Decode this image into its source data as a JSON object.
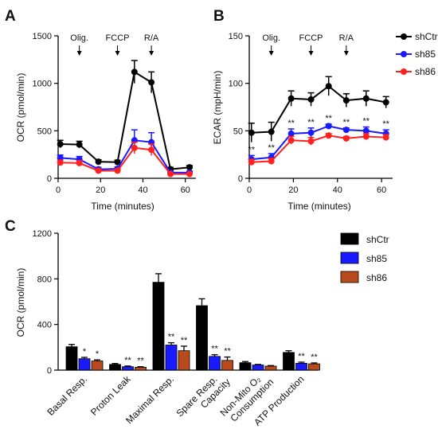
{
  "panels": {
    "A": {
      "letter": "A",
      "ylabel": "OCR (pmol/min)",
      "xlabel": "Time (minutes)"
    },
    "B": {
      "letter": "B",
      "ylabel": "ECAR (mpH/min)",
      "xlabel": "Time (minutes)"
    },
    "C": {
      "letter": "C",
      "ylabel": "OCR (pmol/min)"
    }
  },
  "injections": [
    {
      "label": "Olig.",
      "time": 10
    },
    {
      "label": "FCCP",
      "time": 28
    },
    {
      "label": "R/A",
      "time": 44
    }
  ],
  "colors": {
    "shCtr": "#000000",
    "sh85": "#1a1aff",
    "sh86": "#ff2020"
  },
  "chart_data": [
    {
      "id": "A",
      "type": "line",
      "xlabel": "Time (minutes)",
      "ylabel": "OCR (pmol/min)",
      "xlim": [
        0,
        65
      ],
      "ylim": [
        0,
        1500
      ],
      "xticks": [
        0,
        20,
        40,
        60
      ],
      "yticks": [
        0,
        500,
        1000,
        1500
      ],
      "x": [
        1,
        10,
        19,
        28,
        36,
        44,
        53,
        62
      ],
      "series": [
        {
          "name": "shCtr",
          "values": [
            360,
            355,
            175,
            170,
            1120,
            1010,
            95,
            115
          ],
          "errors": [
            40,
            35,
            20,
            20,
            120,
            110,
            20,
            20
          ]
        },
        {
          "name": "sh85",
          "values": [
            215,
            200,
            95,
            100,
            400,
            380,
            60,
            60
          ],
          "errors": [
            30,
            30,
            20,
            20,
            110,
            100,
            15,
            15
          ]
        },
        {
          "name": "sh86",
          "values": [
            165,
            160,
            80,
            80,
            320,
            300,
            45,
            45
          ],
          "errors": [
            25,
            25,
            15,
            15,
            60,
            60,
            10,
            10
          ]
        }
      ]
    },
    {
      "id": "B",
      "type": "line",
      "xlabel": "Time (minutes)",
      "ylabel": "ECAR (mpH/min)",
      "xlim": [
        0,
        65
      ],
      "ylim": [
        0,
        150
      ],
      "xticks": [
        0,
        20,
        40,
        60
      ],
      "yticks": [
        0,
        50,
        100,
        150
      ],
      "x": [
        1,
        10,
        19,
        28,
        36,
        44,
        53,
        62
      ],
      "legend": {
        "position": "top-right",
        "entries": [
          "shCtr",
          "sh85",
          "sh86"
        ]
      },
      "series": [
        {
          "name": "shCtr",
          "values": [
            48,
            49,
            84,
            83,
            97,
            82,
            84,
            80
          ],
          "errors": [
            10,
            10,
            8,
            7,
            10,
            7,
            8,
            6
          ]
        },
        {
          "name": "sh85",
          "values": [
            20,
            22,
            47,
            48,
            55,
            51,
            50,
            47
          ],
          "errors": [
            4,
            4,
            5,
            5,
            2,
            2,
            4,
            4
          ]
        },
        {
          "name": "sh86",
          "values": [
            17,
            18,
            40,
            39,
            45,
            42,
            44,
            43
          ],
          "errors": [
            3,
            3,
            4,
            4,
            2,
            2,
            3,
            3
          ]
        }
      ],
      "annotations": [
        "**",
        "**",
        "**",
        "**",
        "**",
        "**",
        "**",
        "**"
      ]
    },
    {
      "id": "C",
      "type": "bar",
      "ylabel": "OCR (pmol/min)",
      "ylim": [
        0,
        1200
      ],
      "yticks": [
        0,
        400,
        800,
        1200
      ],
      "categories": [
        "Basal Resp.",
        "Proton Leak",
        "Maximal Resp.",
        "Spare Resp.\nCapacity",
        "Non-Mito O₂\nConsumption",
        "ATP Production"
      ],
      "legend": {
        "position": "top-right",
        "entries": [
          "shCtr",
          "sh85",
          "sh86"
        ]
      },
      "series": [
        {
          "name": "shCtr",
          "values": [
            205,
            50,
            770,
            565,
            65,
            155
          ],
          "errors": [
            20,
            8,
            75,
            60,
            10,
            15
          ]
        },
        {
          "name": "sh85",
          "values": [
            100,
            30,
            220,
            120,
            45,
            60
          ],
          "errors": [
            12,
            6,
            20,
            15,
            5,
            10
          ]
        },
        {
          "name": "sh86",
          "values": [
            80,
            25,
            170,
            85,
            35,
            55
          ],
          "errors": [
            10,
            5,
            40,
            30,
            5,
            8
          ]
        }
      ],
      "annotations": {
        "sh85": [
          "*",
          "**",
          "**",
          "**",
          "",
          "**"
        ],
        "sh86": [
          "*",
          "**",
          "**",
          "**",
          "",
          "**"
        ]
      }
    }
  ]
}
